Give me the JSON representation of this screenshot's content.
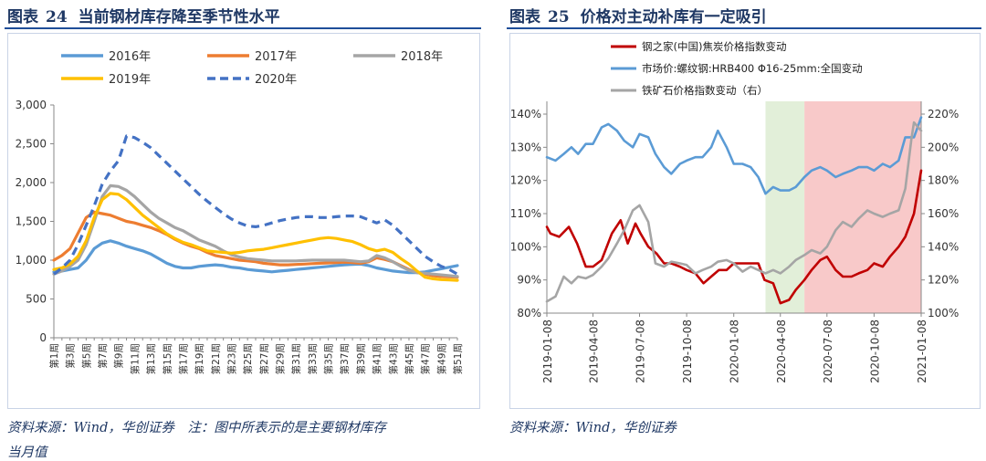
{
  "left": {
    "figure_label": "图表",
    "figure_number": "24",
    "title": "当前钢材库存降至季节性水平",
    "source": "资料来源：Wind，华创证券　注：图中所表示的是主要钢材库存",
    "source_line2": "当月值"
  },
  "right": {
    "figure_label": "图表",
    "figure_number": "25",
    "title": "价格对主动补库有一定吸引",
    "source": "资料来源：Wind，华创证券"
  },
  "colors": {
    "s2016": "#5b9bd5",
    "s2017": "#ed7d31",
    "s2018": "#a5a5a5",
    "s2019": "#ffc000",
    "s2020": "#4472c4",
    "coal": "#c00000",
    "rebar": "#5b9bd5",
    "iron": "#a5a5a5",
    "green_band": "#e2efd9",
    "red_band": "#f8c9c9"
  },
  "chart_data": [
    {
      "type": "line",
      "yticks": [
        "0",
        "500",
        "1,000",
        "1,500",
        "2,000",
        "2,500",
        "3,000"
      ],
      "ylim": [
        0,
        3000
      ],
      "x": [
        1,
        2,
        3,
        4,
        5,
        6,
        7,
        8,
        9,
        10,
        11,
        12,
        13,
        14,
        15,
        16,
        17,
        18,
        19,
        20,
        21,
        22,
        23,
        24,
        25,
        26,
        27,
        28,
        29,
        30,
        31,
        32,
        33,
        34,
        35,
        36,
        37,
        38,
        39,
        40,
        41,
        42,
        43,
        44,
        45,
        46,
        47,
        48,
        49,
        50,
        51
      ],
      "xticks": [
        "第1周",
        "第3周",
        "第5周",
        "第7周",
        "第9周",
        "第11周",
        "第13周",
        "第15周",
        "第17周",
        "第19周",
        "第21周",
        "第23周",
        "第25周",
        "第27周",
        "第29周",
        "第31周",
        "第33周",
        "第35周",
        "第37周",
        "第39周",
        "第41周",
        "第43周",
        "第45周",
        "第47周",
        "第49周",
        "第51周"
      ],
      "series": [
        {
          "name": "2016年",
          "style": "solid",
          "values": [
            850,
            860,
            880,
            900,
            1000,
            1150,
            1220,
            1250,
            1220,
            1180,
            1150,
            1120,
            1080,
            1020,
            960,
            920,
            900,
            900,
            920,
            930,
            940,
            930,
            910,
            900,
            880,
            870,
            860,
            850,
            860,
            870,
            880,
            890,
            900,
            910,
            920,
            930,
            940,
            945,
            950,
            930,
            900,
            880,
            860,
            850,
            840,
            840,
            850,
            870,
            890,
            910,
            930
          ]
        },
        {
          "name": "2017年",
          "style": "solid",
          "values": [
            1000,
            1060,
            1150,
            1350,
            1550,
            1620,
            1600,
            1580,
            1540,
            1500,
            1480,
            1450,
            1420,
            1380,
            1330,
            1270,
            1220,
            1180,
            1150,
            1100,
            1060,
            1040,
            1020,
            1000,
            990,
            980,
            960,
            950,
            940,
            940,
            945,
            950,
            955,
            960,
            965,
            970,
            975,
            970,
            960,
            980,
            1030,
            1010,
            980,
            930,
            880,
            840,
            820,
            800,
            790,
            785,
            780
          ]
        },
        {
          "name": "2018年",
          "style": "solid",
          "values": [
            820,
            860,
            920,
            1000,
            1200,
            1500,
            1820,
            1960,
            1950,
            1900,
            1820,
            1720,
            1620,
            1540,
            1480,
            1420,
            1380,
            1320,
            1260,
            1220,
            1180,
            1120,
            1070,
            1040,
            1020,
            1010,
            1000,
            990,
            990,
            990,
            990,
            995,
            1000,
            1000,
            1000,
            1000,
            1000,
            990,
            980,
            990,
            1060,
            1030,
            980,
            920,
            870,
            840,
            830,
            820,
            810,
            800,
            790
          ]
        },
        {
          "name": "2019年",
          "style": "solid",
          "values": [
            880,
            900,
            950,
            1050,
            1250,
            1550,
            1780,
            1860,
            1850,
            1780,
            1680,
            1580,
            1500,
            1420,
            1340,
            1280,
            1230,
            1200,
            1160,
            1120,
            1110,
            1100,
            1090,
            1100,
            1120,
            1130,
            1140,
            1160,
            1180,
            1200,
            1220,
            1240,
            1260,
            1280,
            1290,
            1280,
            1260,
            1240,
            1200,
            1150,
            1120,
            1140,
            1100,
            1020,
            950,
            860,
            780,
            760,
            750,
            745,
            740
          ]
        },
        {
          "name": "2020年",
          "style": "dashed",
          "values": [
            820,
            900,
            1000,
            1200,
            1450,
            1700,
            1980,
            2150,
            2280,
            2600,
            2580,
            2520,
            2450,
            2350,
            2250,
            2150,
            2050,
            1950,
            1850,
            1760,
            1680,
            1600,
            1530,
            1480,
            1440,
            1430,
            1450,
            1480,
            1510,
            1530,
            1550,
            1560,
            1560,
            1550,
            1550,
            1560,
            1570,
            1570,
            1560,
            1520,
            1480,
            1520,
            1450,
            1350,
            1250,
            1150,
            1050,
            980,
            920,
            880,
            820
          ]
        }
      ]
    },
    {
      "type": "line",
      "xticks": [
        "2019-01-08",
        "2019-04-08",
        "2019-07-08",
        "2019-10-08",
        "2020-01-08",
        "2020-04-08",
        "2020-07-08",
        "2020-10-08",
        "2021-01-08"
      ],
      "xlim": [
        "2019-01-08",
        "2021-01-08"
      ],
      "y_left_ticks": [
        "80%",
        "90%",
        "100%",
        "110%",
        "120%",
        "130%",
        "140%"
      ],
      "ylim_left": [
        80,
        140
      ],
      "y_right_ticks": [
        "100%",
        "120%",
        "140%",
        "160%",
        "180%",
        "200%",
        "220%"
      ],
      "ylim_right": [
        100,
        220
      ],
      "bands": [
        {
          "from": "2020-03-10",
          "to": "2020-05-25",
          "color_key": "green_band"
        },
        {
          "from": "2020-05-25",
          "to": "2021-01-08",
          "color_key": "red_band"
        }
      ],
      "series": [
        {
          "name": "钢之家(中国)焦炭价格指数变动",
          "axis": "left",
          "color_key": "coal",
          "x": [
            "2019-01-08",
            "2019-01-15",
            "2019-02-01",
            "2019-02-20",
            "2019-03-08",
            "2019-03-25",
            "2019-04-08",
            "2019-04-25",
            "2019-05-15",
            "2019-06-01",
            "2019-06-15",
            "2019-06-30",
            "2019-07-10",
            "2019-07-25",
            "2019-08-10",
            "2019-08-25",
            "2019-09-08",
            "2019-09-25",
            "2019-10-08",
            "2019-10-25",
            "2019-11-10",
            "2019-11-25",
            "2019-12-10",
            "2019-12-25",
            "2020-01-08",
            "2020-01-25",
            "2020-02-10",
            "2020-02-25",
            "2020-03-08",
            "2020-03-25",
            "2020-04-08",
            "2020-04-25",
            "2020-05-08",
            "2020-05-25",
            "2020-06-08",
            "2020-06-25",
            "2020-07-08",
            "2020-07-25",
            "2020-08-08",
            "2020-08-25",
            "2020-09-08",
            "2020-09-25",
            "2020-10-08",
            "2020-10-25",
            "2020-11-08",
            "2020-11-25",
            "2020-12-08",
            "2020-12-25",
            "2021-01-08"
          ],
          "values": [
            106,
            104,
            103,
            106,
            101,
            94,
            94,
            96,
            104,
            108,
            101,
            107,
            104,
            100,
            98,
            95,
            95,
            94,
            93,
            92,
            89,
            91,
            93,
            93,
            95,
            95,
            95,
            95,
            90,
            89,
            83,
            84,
            87,
            90,
            93,
            96,
            97,
            93,
            91,
            91,
            92,
            93,
            95,
            94,
            97,
            100,
            103,
            110,
            123
          ]
        },
        {
          "name": "市场价:螺纹钢:HRB400 Φ16-25mm:全国变动",
          "axis": "left",
          "color_key": "rebar",
          "x": [
            "2019-01-08",
            "2019-01-25",
            "2019-02-10",
            "2019-02-25",
            "2019-03-10",
            "2019-03-25",
            "2019-04-08",
            "2019-04-25",
            "2019-05-08",
            "2019-05-25",
            "2019-06-08",
            "2019-06-25",
            "2019-07-08",
            "2019-07-25",
            "2019-08-08",
            "2019-08-25",
            "2019-09-08",
            "2019-09-25",
            "2019-10-08",
            "2019-10-25",
            "2019-11-08",
            "2019-11-25",
            "2019-12-08",
            "2019-12-25",
            "2020-01-08",
            "2020-01-25",
            "2020-02-10",
            "2020-02-25",
            "2020-03-10",
            "2020-03-25",
            "2020-04-08",
            "2020-04-25",
            "2020-05-08",
            "2020-05-25",
            "2020-06-08",
            "2020-06-25",
            "2020-07-08",
            "2020-07-25",
            "2020-08-08",
            "2020-08-25",
            "2020-09-08",
            "2020-09-25",
            "2020-10-08",
            "2020-10-25",
            "2020-11-08",
            "2020-11-25",
            "2020-12-08",
            "2020-12-25",
            "2021-01-08"
          ],
          "values": [
            127,
            126,
            128,
            130,
            128,
            131,
            131,
            136,
            137,
            135,
            132,
            130,
            134,
            133,
            128,
            124,
            122,
            125,
            126,
            127,
            127,
            130,
            135,
            130,
            125,
            125,
            124,
            121,
            116,
            118,
            117,
            117,
            118,
            121,
            123,
            124,
            123,
            121,
            122,
            123,
            124,
            124,
            123,
            125,
            124,
            126,
            133,
            133,
            139
          ]
        },
        {
          "name": "铁矿石价格指数变动（右）",
          "axis": "right",
          "color_key": "iron",
          "x": [
            "2019-01-08",
            "2019-01-25",
            "2019-02-10",
            "2019-02-25",
            "2019-03-10",
            "2019-03-25",
            "2019-04-08",
            "2019-04-25",
            "2019-05-08",
            "2019-05-25",
            "2019-06-08",
            "2019-06-25",
            "2019-07-08",
            "2019-07-25",
            "2019-08-08",
            "2019-08-25",
            "2019-09-08",
            "2019-09-25",
            "2019-10-08",
            "2019-10-25",
            "2019-11-08",
            "2019-11-25",
            "2019-12-08",
            "2019-12-25",
            "2020-01-08",
            "2020-01-25",
            "2020-02-10",
            "2020-02-25",
            "2020-03-10",
            "2020-03-25",
            "2020-04-08",
            "2020-04-25",
            "2020-05-08",
            "2020-05-25",
            "2020-06-08",
            "2020-06-25",
            "2020-07-08",
            "2020-07-25",
            "2020-08-08",
            "2020-08-25",
            "2020-09-08",
            "2020-09-25",
            "2020-10-08",
            "2020-10-25",
            "2020-11-08",
            "2020-11-25",
            "2020-12-08",
            "2020-12-20",
            "2020-12-25",
            "2021-01-08"
          ],
          "values": [
            107,
            110,
            122,
            118,
            122,
            121,
            123,
            128,
            133,
            142,
            150,
            162,
            165,
            155,
            130,
            128,
            131,
            130,
            129,
            124,
            126,
            128,
            131,
            132,
            130,
            125,
            128,
            126,
            124,
            126,
            124,
            128,
            132,
            135,
            138,
            136,
            140,
            150,
            155,
            152,
            157,
            162,
            160,
            158,
            160,
            162,
            175,
            205,
            215,
            210
          ]
        }
      ]
    }
  ]
}
